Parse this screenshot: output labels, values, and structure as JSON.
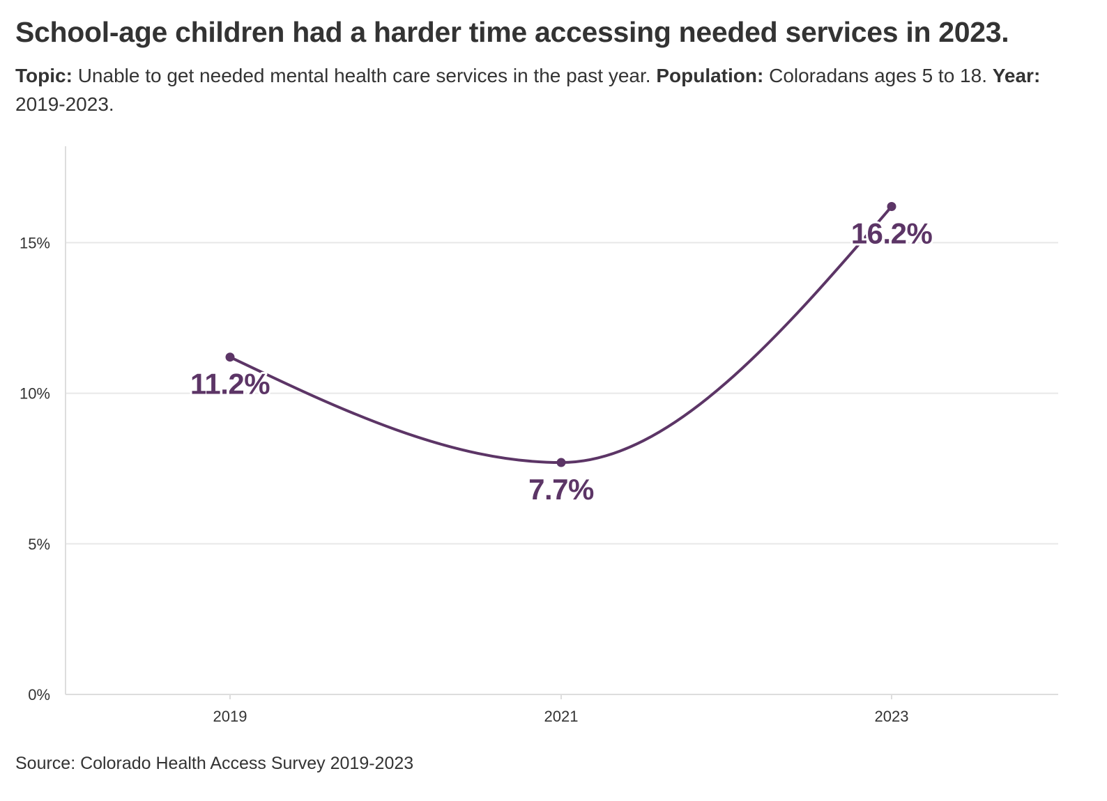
{
  "title": "School-age children had a harder time accessing needed services in 2023.",
  "subtitle": {
    "topic_label": "Topic:",
    "topic_text": " Unable to get needed mental health care services in the past year. ",
    "population_label": "Population:",
    "population_text": " Coloradans ages 5 to 18. ",
    "year_label": "Year:",
    "year_text": " 2019-2023."
  },
  "source": "Source: Colorado Health Access Survey 2019-2023",
  "colors": {
    "series": "#5c3566",
    "grid": "#e8e8e8",
    "axis": "#dddddd",
    "text": "#333333"
  },
  "chart_data": {
    "type": "line",
    "categories": [
      "2019",
      "2021",
      "2023"
    ],
    "series": [
      {
        "values": [
          11.2,
          7.7,
          16.2
        ],
        "labels": [
          "11.2%",
          "7.7%",
          "16.2%"
        ]
      }
    ],
    "yticks": [
      0,
      5,
      10,
      15
    ],
    "ytick_labels": [
      "0%",
      "5%",
      "10%",
      "15%"
    ],
    "ylim": [
      0,
      18.2
    ],
    "grid": true,
    "curve": "smooth",
    "markers": true
  }
}
